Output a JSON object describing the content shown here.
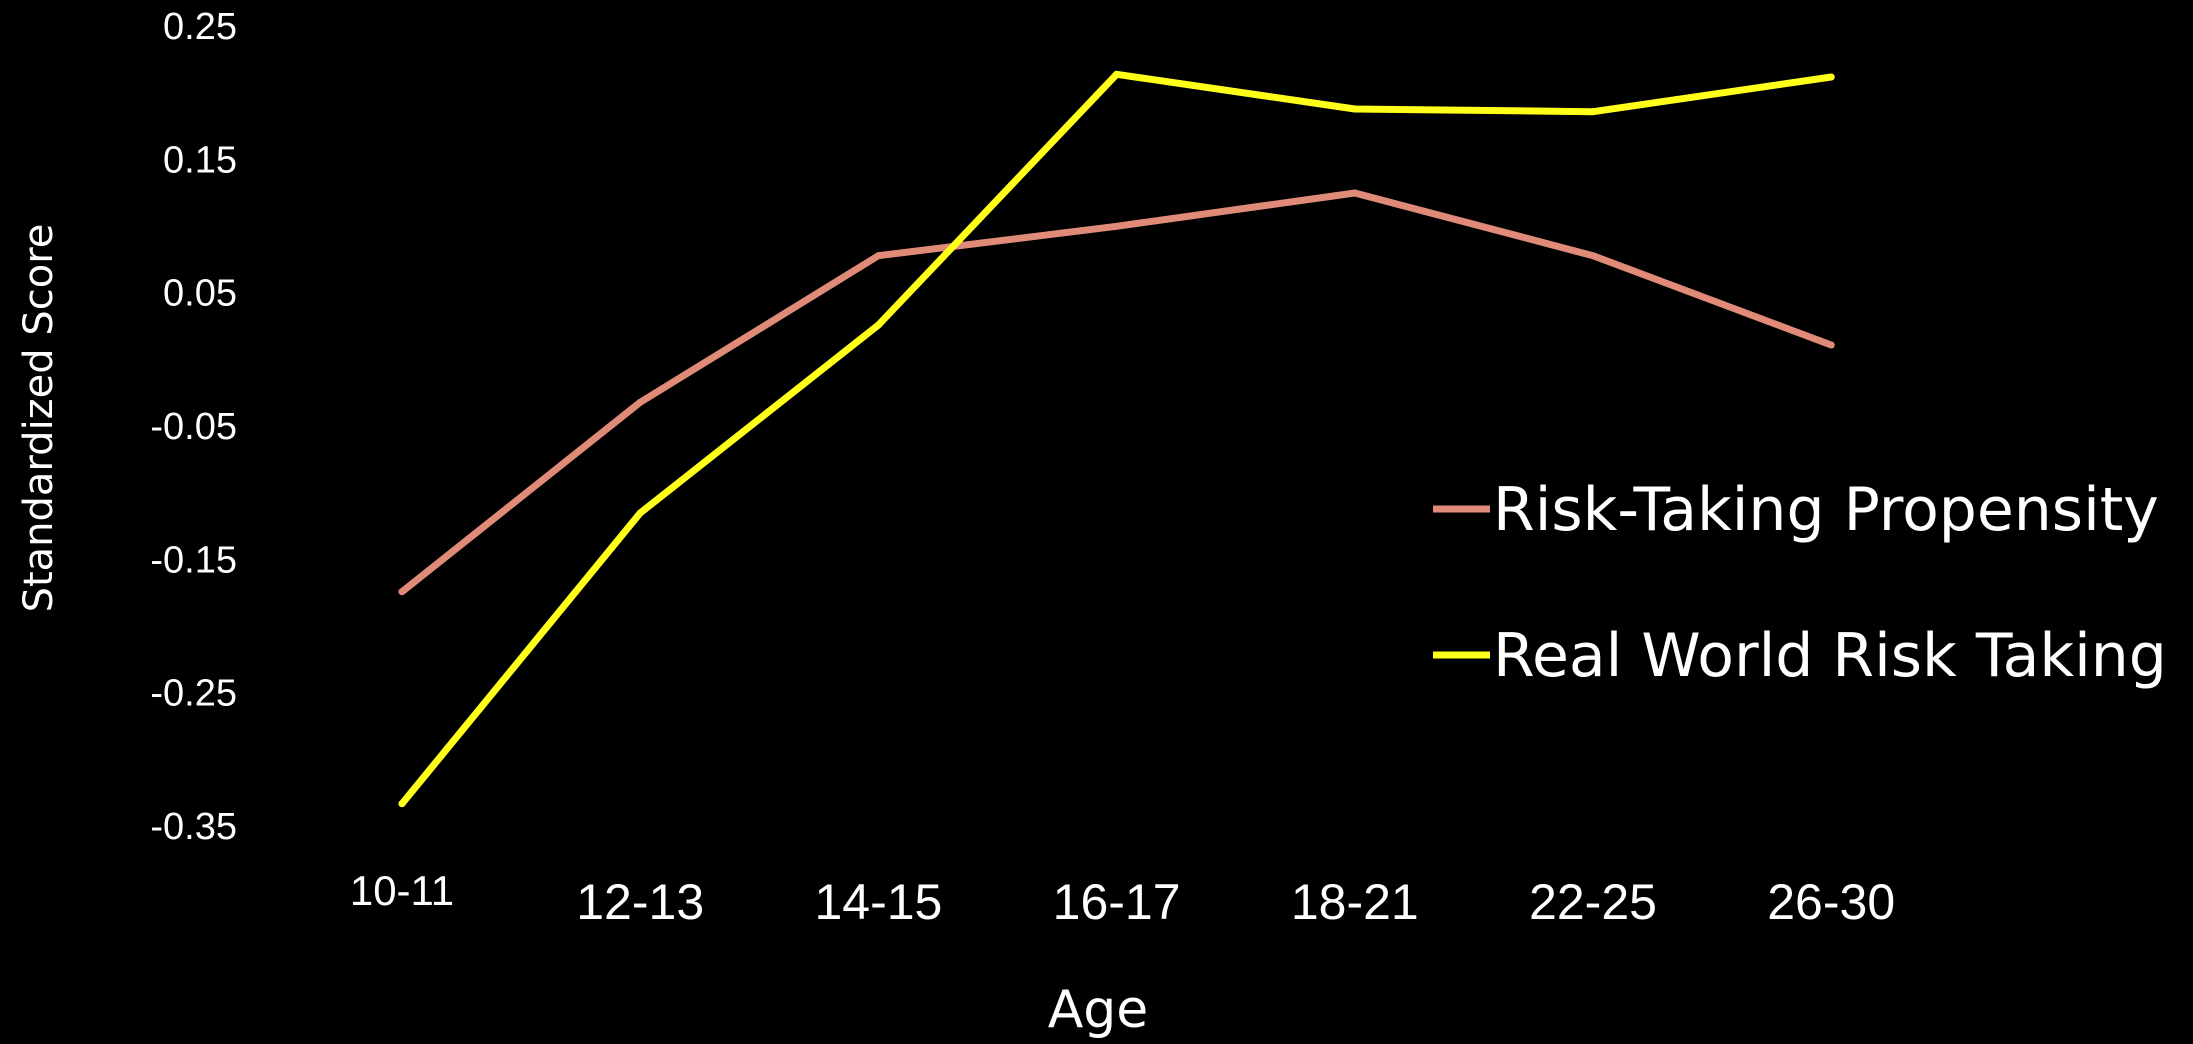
{
  "chart_data": {
    "type": "line",
    "title": "",
    "xlabel": "Age",
    "ylabel": "Standardized Score",
    "categories": [
      "10-11",
      "12-13",
      "14-15",
      "16-17",
      "18-21",
      "22-25",
      "26-30"
    ],
    "yticks": [
      "0.25",
      "0.15",
      "0.05",
      "-0.05",
      "-0.15",
      "-0.25",
      "-0.35"
    ],
    "ylim": [
      -0.35,
      0.25
    ],
    "grid": false,
    "legend_position": "right",
    "series": [
      {
        "name": "Risk-Taking Propensity",
        "color": "#e08a78",
        "values": [
          -0.175,
          -0.033,
          0.077,
          0.099,
          0.124,
          0.077,
          0.01
        ]
      },
      {
        "name": "Real World Risk Taking",
        "color": "#ffff1a",
        "values": [
          -0.334,
          -0.116,
          0.025,
          0.213,
          0.187,
          0.185,
          0.211
        ]
      }
    ]
  }
}
